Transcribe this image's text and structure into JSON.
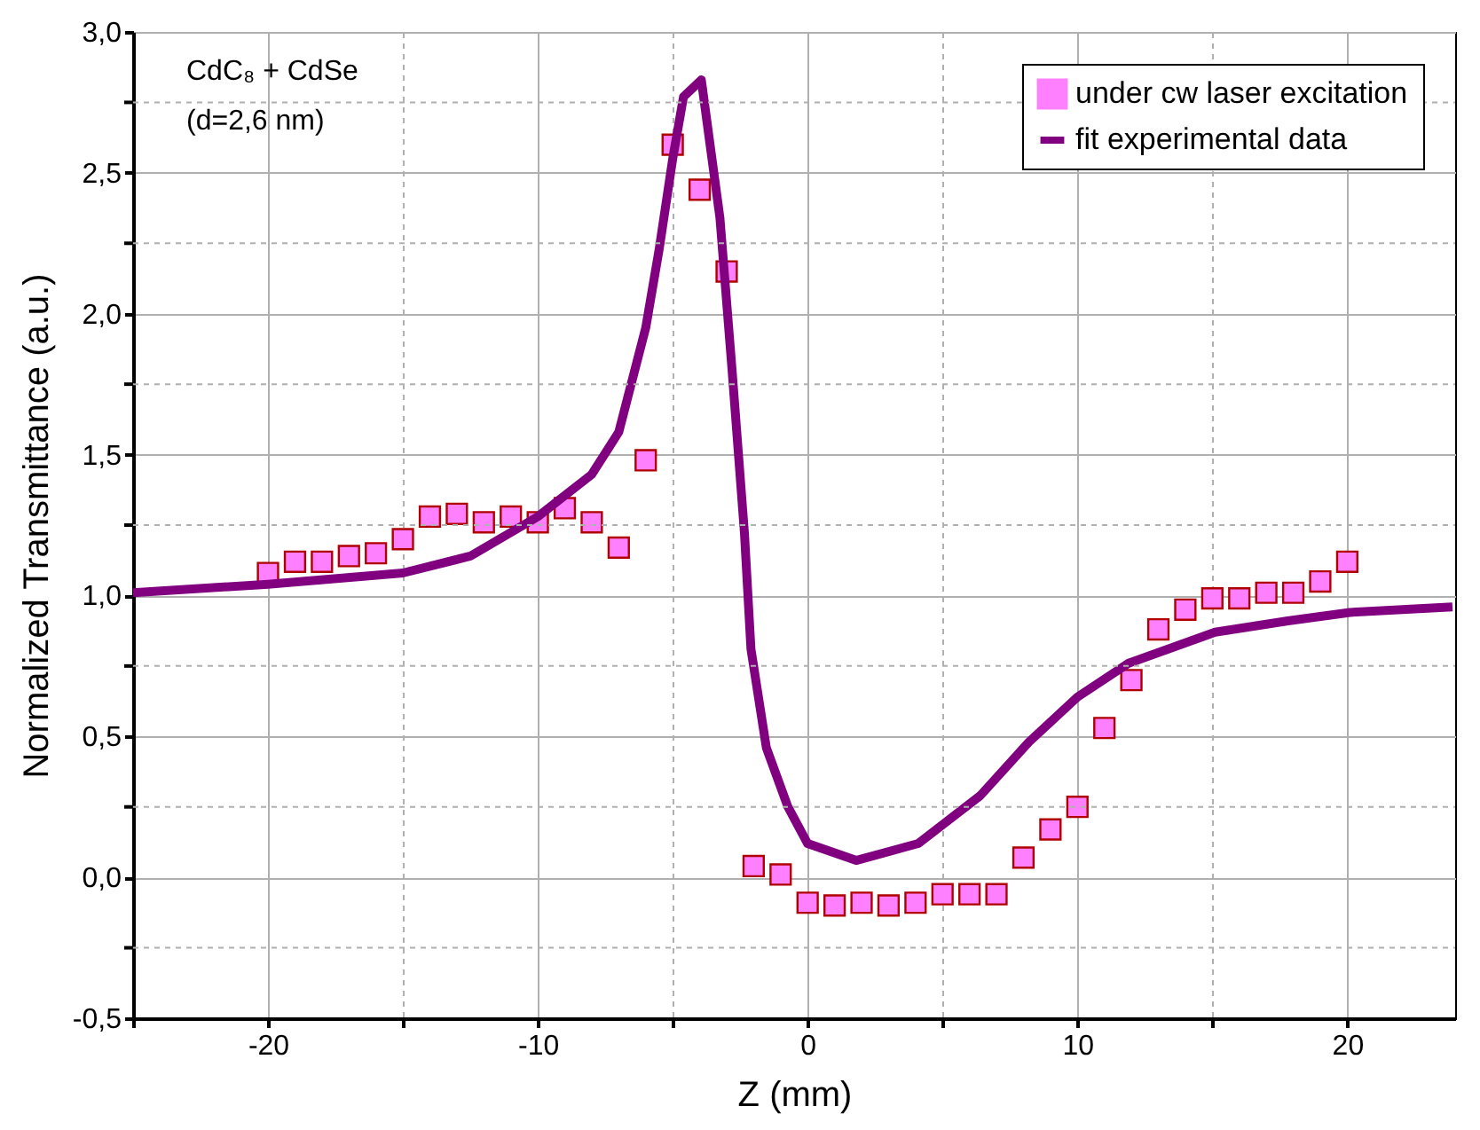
{
  "chart_data": {
    "type": "scatter",
    "xlabel": "Z (mm)",
    "ylabel": "Normalized Transmittance (a.u.)",
    "annotations": [
      "CdC₈ + CdSe",
      "(d=2,6 nm)"
    ],
    "xlim": [
      -25,
      24
    ],
    "ylim": [
      -0.5,
      3.0
    ],
    "xticks": [
      {
        "value": -25,
        "label": null
      },
      -20,
      {
        "value": -15,
        "label": null
      },
      -10,
      {
        "value": -5,
        "label": null
      },
      0,
      {
        "value": 5,
        "label": null
      },
      10,
      {
        "value": 15,
        "label": null
      },
      20
    ],
    "yticks": [
      {
        "value": -0.5,
        "label": "-0,5"
      },
      {
        "value": -0.25,
        "label": null
      },
      {
        "value": 0,
        "label": "0,0"
      },
      {
        "value": 0.25,
        "label": null
      },
      {
        "value": 0.5,
        "label": "0,5"
      },
      {
        "value": 0.75,
        "label": null
      },
      {
        "value": 1.0,
        "label": "1,0"
      },
      {
        "value": 1.25,
        "label": null
      },
      {
        "value": 1.5,
        "label": "1,5"
      },
      {
        "value": 1.75,
        "label": null
      },
      {
        "value": 2.0,
        "label": "2,0"
      },
      {
        "value": 2.25,
        "label": null
      },
      {
        "value": 2.5,
        "label": "2,5"
      },
      {
        "value": 2.75,
        "label": null
      },
      {
        "value": 3.0,
        "label": "3,0"
      }
    ],
    "grid": true,
    "legend": "top right",
    "series": [
      {
        "name": "under cw laser excitation",
        "marker": "square",
        "color": "#ff80ff",
        "x": [
          -20,
          -19,
          -18,
          -17,
          -16,
          -15,
          -14,
          -13,
          -12,
          -11,
          -10,
          -9,
          -8,
          -7,
          -6,
          -5,
          -4,
          -3,
          -2,
          -1,
          0,
          1,
          2,
          3,
          4,
          5,
          6,
          7,
          8,
          9,
          10,
          11,
          12,
          13,
          14,
          15,
          16,
          17,
          18,
          19,
          20
        ],
        "values": [
          1.08,
          1.12,
          1.12,
          1.14,
          1.15,
          1.2,
          1.28,
          1.29,
          1.26,
          1.28,
          1.26,
          1.31,
          1.26,
          1.17,
          1.48,
          2.6,
          2.44,
          2.15,
          0.04,
          0.01,
          -0.09,
          -0.1,
          -0.09,
          -0.1,
          -0.09,
          -0.06,
          -0.06,
          -0.06,
          0.07,
          0.17,
          0.25,
          0.53,
          0.7,
          0.88,
          0.95,
          0.99,
          0.99,
          1.01,
          1.01,
          1.05,
          1.12
        ]
      },
      {
        "name": "fit experimental data",
        "type": "line",
        "marker": "none",
        "line_style": "solid",
        "color": "#800080",
        "x": [
          -25,
          -20,
          -15,
          -12.5,
          -10,
          -8,
          -7,
          -6,
          -5.5,
          -5,
          -4.6,
          -3.94,
          -3.25,
          -2.8,
          -2.34,
          -2.1,
          -1.53,
          -0.73,
          0,
          1.8,
          4.1,
          6.4,
          8.2,
          10,
          11.9,
          15.1,
          17.8,
          20.1,
          23.9
        ],
        "values": [
          1.01,
          1.04,
          1.08,
          1.14,
          1.28,
          1.43,
          1.58,
          1.95,
          2.23,
          2.55,
          2.77,
          2.83,
          2.34,
          1.8,
          1.22,
          0.81,
          0.46,
          0.25,
          0.12,
          0.06,
          0.12,
          0.29,
          0.48,
          0.64,
          0.76,
          0.87,
          0.91,
          0.94,
          0.96
        ]
      }
    ]
  }
}
